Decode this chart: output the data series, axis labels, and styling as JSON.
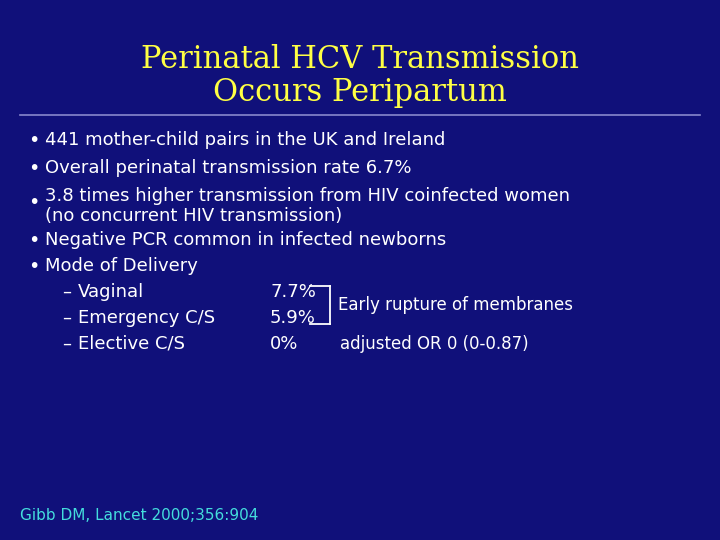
{
  "title_line1": "Perinatal HCV Transmission",
  "title_line2": "Occurs Peripartum",
  "title_color": "#FFFF44",
  "background_color": "#10107a",
  "body_text_color": "#FFFFFF",
  "citation_color": "#44DDDD",
  "bullet_points": [
    "441 mother-child pairs in the UK and Ireland",
    "Overall perinatal transmission rate 6.7%",
    "3.8 times higher transmission from HIV coinfected women",
    "(no concurrent HIV transmission)",
    "Negative PCR common in infected newborns",
    "Mode of Delivery"
  ],
  "sub_items": [
    [
      "Vaginal",
      "7.7%"
    ],
    [
      "Emergency C/S",
      "5.9%"
    ],
    [
      "Elective C/S",
      "0%"
    ]
  ],
  "bracket_annotation": "Early rupture of membranes",
  "elective_annotation": "adjusted OR 0 (0-0.87)",
  "citation": "Gibb DM, Lancet 2000;356:904",
  "separator_color": "#8888CC",
  "title_fontsize": 22,
  "body_fontsize": 13,
  "citation_fontsize": 11
}
